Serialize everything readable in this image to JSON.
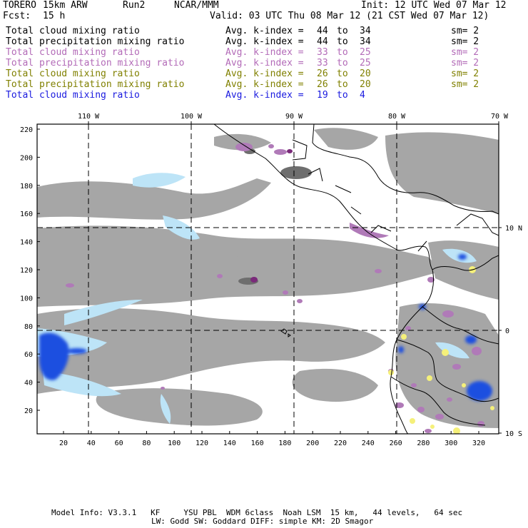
{
  "header": {
    "model": "TORERO",
    "resolution": "15km ARW",
    "run": "Run2",
    "org": "NCAR/MMM",
    "init": "Init: 12 UTC Wed 07 Mar 12",
    "fcst_label": "Fcst:",
    "fcst_value": "15 h",
    "valid": "Valid: 03 UTC Thu 08 Mar 12 (21 CST Wed 07 Mar 12)"
  },
  "fields": [
    {
      "name": "Total cloud mixing ratio",
      "k_label": "Avg. k-index =",
      "k_from": "44",
      "to": "to",
      "k_to": "34",
      "sm": "sm= 2",
      "color": "#000000"
    },
    {
      "name": "Total precipitation mixing ratio",
      "k_label": "Avg. k-index =",
      "k_from": "44",
      "to": "to",
      "k_to": "34",
      "sm": "sm= 2",
      "color": "#000000"
    },
    {
      "name": "Total cloud mixing ratio",
      "k_label": "Avg. k-index =",
      "k_from": "33",
      "to": "to",
      "k_to": "25",
      "sm": "sm= 2",
      "color": "#b36bb8"
    },
    {
      "name": "Total precipitation mixing ratio",
      "k_label": "Avg. k-index =",
      "k_from": "33",
      "to": "to",
      "k_to": "25",
      "sm": "sm= 2",
      "color": "#b36bb8"
    },
    {
      "name": "Total cloud mixing ratio",
      "k_label": "Avg. k-index =",
      "k_from": "26",
      "to": "to",
      "k_to": "20",
      "sm": "sm= 2",
      "color": "#808000"
    },
    {
      "name": "Total precipitation mixing ratio",
      "k_label": "Avg. k-index =",
      "k_from": "26",
      "to": "to",
      "k_to": "20",
      "sm": "sm= 2",
      "color": "#808000"
    },
    {
      "name": "Total cloud mixing ratio",
      "k_label": "Avg. k-index =",
      "k_from": "19",
      "to": "to",
      "k_to": "4",
      "sm": "",
      "color": "#1a1adf"
    }
  ],
  "map": {
    "lon_labels": [
      "110 W",
      "100 W",
      "90 W",
      "80 W",
      "70 W"
    ],
    "lat_labels": [
      "10 N",
      "0",
      "10 S"
    ],
    "y_ticks": [
      "220",
      "200",
      "180",
      "160",
      "140",
      "120",
      "100",
      "80",
      "60",
      "40",
      "20"
    ],
    "x_ticks": [
      "20",
      "40",
      "60",
      "80",
      "100",
      "120",
      "140",
      "160",
      "180",
      "200",
      "220",
      "240",
      "260",
      "280",
      "300",
      "320"
    ],
    "colors": {
      "cloud_gray": "#a6a6a6",
      "dark_gray": "#6e6e6e",
      "purple": "#b07ab8",
      "dark_purple": "#7a2a7a",
      "light_blue": "#bde4f7",
      "blue": "#1f4fe0",
      "yellow": "#f5f07a"
    }
  },
  "footer": {
    "line1": "Model Info: V3.3.1   KF     YSU PBL  WDM 6class  Noah LSM  15 km,   44 levels,   64 sec",
    "line2": "LW: Godd SW: Goddard DIFF: simple KM: 2D Smagor"
  }
}
